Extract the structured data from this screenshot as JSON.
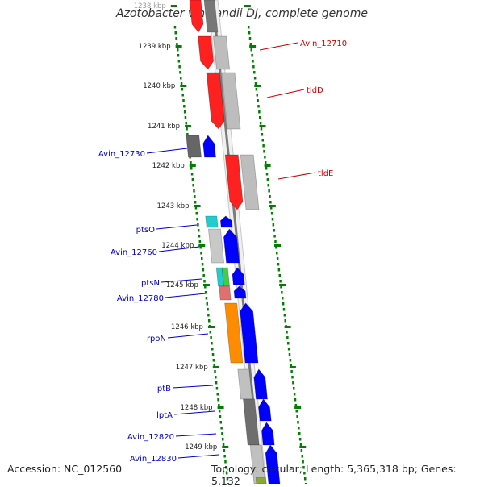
{
  "title": "Azotobacter vinelandii DJ, complete genome",
  "footer": {
    "accession": "Accession: NC_012560",
    "topology": "Topology: circular; Length: 5,365,318 bp; Genes: 5,132"
  },
  "colors": {
    "forward_gene": "#0000ff",
    "reverse_gene": "#ff0000",
    "ruler_ticks": "#008000",
    "label_blue": "#0000cc",
    "label_red": "#cc0000"
  },
  "ruler_labels": [
    "1238 kbp",
    "1239 kbp",
    "1240 kbp",
    "1241 kbp",
    "1242 kbp",
    "1243 kbp",
    "1244 kbp",
    "1245 kbp",
    "1246 kbp",
    "1247 kbp",
    "1248 kbp",
    "1249 kbp"
  ],
  "genes_left": [
    {
      "name": "Avin_12730"
    },
    {
      "name": "ptsO"
    },
    {
      "name": "Avin_12760"
    },
    {
      "name": "ptsN"
    },
    {
      "name": "Avin_12780"
    },
    {
      "name": "rpoN"
    },
    {
      "name": "lptB"
    },
    {
      "name": "lptA"
    },
    {
      "name": "Avin_12820"
    },
    {
      "name": "Avin_12830"
    }
  ],
  "genes_right": [
    {
      "name": "Avin_12710"
    },
    {
      "name": "tldD"
    },
    {
      "name": "tldE"
    }
  ]
}
